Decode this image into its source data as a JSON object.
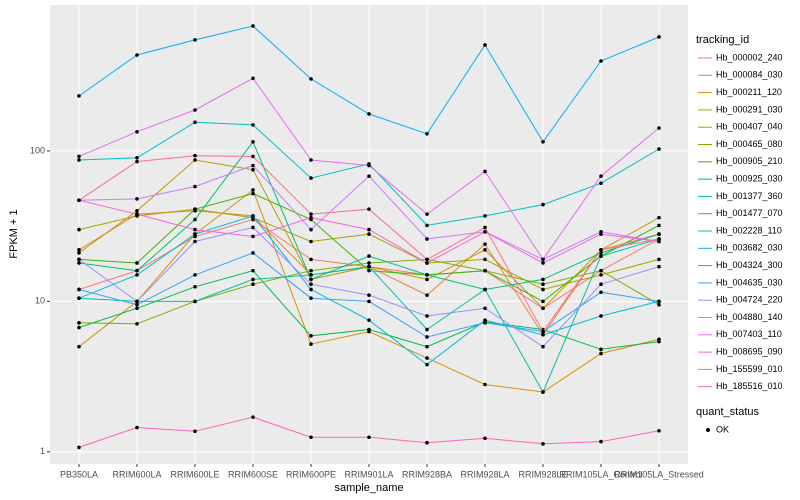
{
  "chart_data": {
    "type": "line",
    "x_label": "sample_name",
    "y_label": "FPKM + 1",
    "categories": [
      "PB350LA",
      "RRIM600LA",
      "RRIM600LE",
      "RRIM600SE",
      "RRIM600PE",
      "RRIM901LA",
      "RRIM928BA",
      "RRIM928LA",
      "RRIM928LE",
      "RRIM105LA_Control",
      "RRIM105LA_Stressed"
    ],
    "ylim": [
      0.83,
      933
    ],
    "yticks": [
      1,
      10,
      100
    ],
    "log_scale": true,
    "grid": true,
    "legend_position": "right",
    "legend_title": "tracking_id",
    "point_legend": {
      "title": "quant_status",
      "labels": [
        "OK"
      ]
    },
    "series": [
      {
        "name": "Hb_000002_240",
        "color": "#F8766D",
        "values": [
          12,
          16,
          27,
          35,
          19,
          17,
          15,
          16,
          9,
          16,
          26
        ]
      },
      {
        "name": "Hb_000084_030",
        "color": "#EA8331",
        "values": [
          22,
          38,
          40,
          37,
          15,
          17,
          11,
          24,
          6,
          22,
          28
        ]
      },
      {
        "name": "Hb_000211_120",
        "color": "#D89000",
        "values": [
          5,
          10,
          28,
          55,
          5.2,
          6.3,
          4.2,
          2.8,
          2.5,
          4.5,
          5.6
        ]
      },
      {
        "name": "Hb_000291_030",
        "color": "#C09B00",
        "values": [
          21,
          40,
          87,
          75,
          14,
          17,
          14,
          22,
          9,
          22,
          36
        ]
      },
      {
        "name": "Hb_000407_040",
        "color": "#A3A500",
        "values": [
          30,
          37,
          41,
          36,
          25,
          28,
          18,
          19,
          12,
          15,
          19
        ]
      },
      {
        "name": "Hb_000465_080",
        "color": "#7CAE00",
        "values": [
          7.2,
          7.1,
          10,
          13,
          16,
          18,
          19,
          16,
          13,
          16,
          9.5
        ]
      },
      {
        "name": "Hb_000905_210",
        "color": "#39B600",
        "values": [
          19,
          18,
          41,
          52,
          35,
          16,
          15,
          16,
          10,
          20,
          32
        ]
      },
      {
        "name": "Hb_000925_030",
        "color": "#00BB4E",
        "values": [
          6.7,
          9,
          12.5,
          16,
          5.9,
          6.5,
          5,
          7.3,
          6.5,
          4.8,
          5.4
        ]
      },
      {
        "name": "Hb_001377_360",
        "color": "#00BF7D",
        "values": [
          18,
          16,
          35,
          115,
          14,
          20,
          15,
          12,
          14,
          21,
          28
        ]
      },
      {
        "name": "Hb_001477_070",
        "color": "#00C1A3",
        "values": [
          10.5,
          10,
          10,
          14,
          15,
          17,
          6.5,
          12,
          2.5,
          20,
          26
        ]
      },
      {
        "name": "Hb_002228_110",
        "color": "#00BFC4",
        "values": [
          87,
          90,
          155,
          149,
          66,
          82,
          32,
          37,
          44,
          61,
          103
        ]
      },
      {
        "name": "Hb_003682_030",
        "color": "#00BAE0",
        "values": [
          10.5,
          15,
          28,
          37,
          12,
          7.5,
          3.8,
          7.5,
          6,
          8,
          10
        ]
      },
      {
        "name": "Hb_004324_300",
        "color": "#00B0F6",
        "values": [
          232,
          434,
          547,
          677,
          301,
          176,
          130,
          506,
          115,
          396,
          572
        ]
      },
      {
        "name": "Hb_004635_030",
        "color": "#35A2FF",
        "values": [
          12,
          9.5,
          15,
          21,
          10.5,
          10,
          5.8,
          7.2,
          6.3,
          11.5,
          10
        ]
      },
      {
        "name": "Hb_004724_220",
        "color": "#9590FF",
        "values": [
          19,
          10,
          25,
          31,
          13,
          11,
          8,
          9,
          5,
          13,
          17
        ]
      },
      {
        "name": "Hb_004880_140",
        "color": "#C77CFF",
        "values": [
          47,
          48,
          58,
          80,
          30,
          68,
          26,
          29,
          19,
          29,
          25
        ]
      },
      {
        "name": "Hb_007403_110",
        "color": "#E76BF3",
        "values": [
          92,
          134,
          187,
          304,
          87,
          80,
          38,
          73,
          19,
          68,
          142
        ]
      },
      {
        "name": "Hb_008695_090",
        "color": "#FA62DB",
        "values": [
          47,
          38,
          30,
          27,
          36,
          30,
          18,
          29,
          18,
          28,
          25
        ]
      },
      {
        "name": "Hb_155599_010",
        "color": "#FF62BC",
        "values": [
          1.07,
          1.45,
          1.37,
          1.7,
          1.25,
          1.25,
          1.15,
          1.23,
          1.13,
          1.17,
          1.38
        ]
      },
      {
        "name": "Hb_185516_010",
        "color": "#FF6C91",
        "values": [
          47,
          85,
          93,
          92,
          38,
          41,
          19,
          31,
          6.3,
          22,
          26
        ]
      }
    ]
  }
}
